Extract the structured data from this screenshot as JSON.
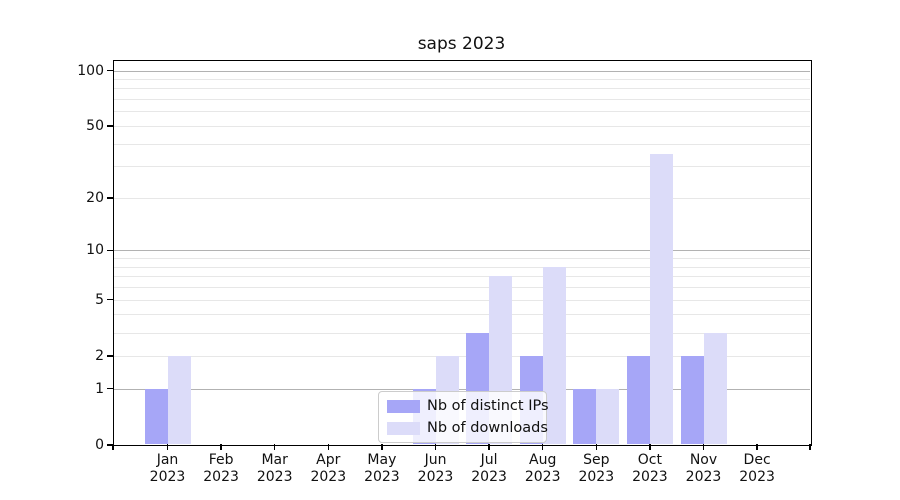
{
  "title": "saps 2023",
  "chart_data": {
    "type": "bar",
    "title": "saps 2023",
    "categories": [
      "Jan",
      "Feb",
      "Mar",
      "Apr",
      "May",
      "Jun",
      "Jul",
      "Aug",
      "Sep",
      "Oct",
      "Nov",
      "Dec"
    ],
    "category_year": "2023",
    "series": [
      {
        "name": "Nb of distinct IPs",
        "color": "#a6a6f7",
        "values": [
          1,
          0,
          0,
          0,
          0,
          1,
          3,
          2,
          1,
          2,
          2,
          0
        ]
      },
      {
        "name": "Nb of downloads",
        "color": "#dcdcf9",
        "values": [
          2,
          0,
          0,
          0,
          0,
          2,
          7,
          8,
          1,
          35,
          3,
          0
        ]
      }
    ],
    "xlabel": "",
    "ylabel": "",
    "yscale": "log1p",
    "ylim": [
      0,
      115
    ],
    "yticks": [
      0,
      1,
      2,
      5,
      10,
      20,
      50,
      100
    ],
    "major_gridlines": [
      1,
      10,
      100
    ],
    "minor_gridlines": [
      2,
      3,
      4,
      5,
      6,
      7,
      8,
      9,
      20,
      30,
      40,
      50,
      60,
      70,
      80,
      90
    ],
    "grid": "horizontal",
    "legend": {
      "position": "lower center inside",
      "items": [
        "Nb of distinct IPs",
        "Nb of downloads"
      ]
    },
    "colors": {
      "axis": "#000000",
      "major_grid": "#b2b2b2",
      "minor_grid": "#e7e7e7",
      "text": "#111111",
      "background": "#ffffff"
    }
  }
}
